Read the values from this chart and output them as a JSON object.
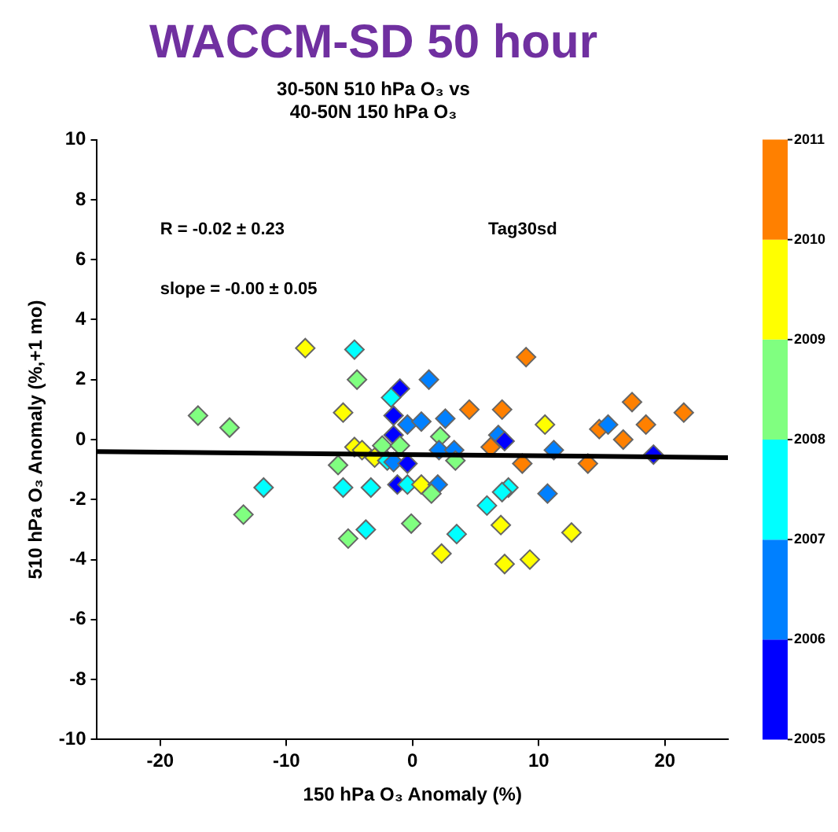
{
  "chart_data": {
    "type": "scatter",
    "title": "WACCM-SD 50 hour",
    "subtitle": "30-50N 510 hPa O₃ vs\n40-50N 150 hPa O₃",
    "xlabel": "150 hPa O₃ Anomaly (%)",
    "ylabel": "510 hPa O₃ Anomaly (%,+1 mo)",
    "xlim": [
      -25,
      25
    ],
    "xticks": [
      -20,
      -10,
      0,
      10,
      20
    ],
    "ylim": [
      -10,
      10
    ],
    "yticks": [
      -10,
      -8,
      -6,
      -4,
      -2,
      0,
      2,
      4,
      6,
      8,
      10
    ],
    "clim": [
      2005,
      2011
    ],
    "cticks": [
      2005,
      2006,
      2007,
      2008,
      2009,
      2010,
      2011
    ],
    "grid": false,
    "legend": false,
    "annotations": [
      "R = -0.02 ± 0.23",
      "slope = -0.00 ± 0.05",
      "Tag30sd"
    ],
    "series": [
      {
        "marker": "diamond",
        "x": [
          -8.5,
          -4.6,
          -4.4,
          -1.0,
          -1.7,
          -17,
          -14.5,
          -5.5,
          -1.5,
          -0.4,
          0.7,
          -1.5,
          -2.4,
          -1.0,
          -4.6,
          -4.0,
          -3.0,
          -2.0,
          -5.9,
          -1.5,
          -0.4,
          -11.8,
          -5.5,
          -3.3,
          -1.2,
          -0.4,
          0.7,
          -13.4,
          -0.1,
          -5.1,
          -3.7,
          9.0,
          1.3,
          4.5,
          7.1,
          17.4,
          21.5,
          2.6,
          10.5,
          18.5,
          14.8,
          15.5,
          16.7,
          2.2,
          6.8,
          7.3,
          6.2,
          2.1,
          3.3,
          3.4,
          11.2,
          8.7,
          13.9,
          19.1,
          2.0,
          1.5,
          7.6,
          7.1,
          10.7,
          5.9,
          7.0,
          12.6,
          3.5,
          2.3,
          7.3,
          9.3
        ],
        "values": [
          3.05,
          3.0,
          2.0,
          1.7,
          1.4,
          0.8,
          0.4,
          0.9,
          0.8,
          0.5,
          0.6,
          0.15,
          -0.2,
          -0.2,
          -0.25,
          -0.35,
          -0.6,
          -0.7,
          -0.85,
          -0.75,
          -0.8,
          -1.6,
          -1.6,
          -1.6,
          -1.5,
          -1.5,
          -1.5,
          -2.5,
          -2.8,
          -3.3,
          -3.0,
          2.75,
          2.0,
          1.0,
          1.0,
          1.25,
          0.9,
          0.7,
          0.5,
          0.5,
          0.35,
          0.5,
          0.0,
          0.1,
          0.15,
          -0.05,
          -0.25,
          -0.35,
          -0.35,
          -0.7,
          -0.35,
          -0.8,
          -0.8,
          -0.5,
          -1.5,
          -1.8,
          -1.6,
          -1.75,
          -1.8,
          -2.2,
          -2.85,
          -3.1,
          -3.15,
          -3.8,
          -4.15,
          -4.0
        ],
        "colors": [
          "#ffff00",
          "#00ffff",
          "#80ff80",
          "#0000ff",
          "#00ffff",
          "#80ff80",
          "#80ff80",
          "#ffff00",
          "#0000ff",
          "#0080ff",
          "#0080ff",
          "#0000ff",
          "#80ff80",
          "#80ff80",
          "#ffff00",
          "#ffff00",
          "#ffff00",
          "#00ffff",
          "#80ff80",
          "#0080ff",
          "#0000ff",
          "#00ffff",
          "#00ffff",
          "#00ffff",
          "#0000ff",
          "#00ffff",
          "#ffff00",
          "#80ff80",
          "#80ff80",
          "#80ff80",
          "#00ffff",
          "#ff8000",
          "#0080ff",
          "#ff8000",
          "#ff8000",
          "#ff8000",
          "#ff8000",
          "#0080ff",
          "#ffff00",
          "#ff8000",
          "#ff8000",
          "#0080ff",
          "#ff8000",
          "#80ff80",
          "#0080ff",
          "#0000ff",
          "#ff8000",
          "#0080ff",
          "#0080ff",
          "#80ff80",
          "#0080ff",
          "#ff8000",
          "#ff8000",
          "#0000ff",
          "#0080ff",
          "#80ff80",
          "#00ffff",
          "#00ffff",
          "#0080ff",
          "#00ffff",
          "#ffff00",
          "#ffff00",
          "#00ffff",
          "#ffff00",
          "#ffff00",
          "#ffff00"
        ]
      },
      {
        "type": "line",
        "x": [
          -25,
          25
        ],
        "values": [
          -0.4,
          -0.6
        ],
        "color": "#000000",
        "line_style": "solid",
        "marker": "none"
      }
    ]
  }
}
